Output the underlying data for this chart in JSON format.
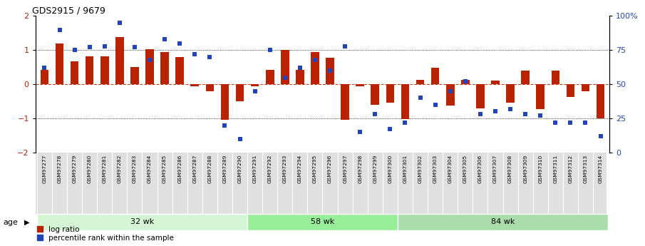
{
  "title": "GDS2915 / 9679",
  "samples": [
    "GSM97277",
    "GSM97278",
    "GSM97279",
    "GSM97280",
    "GSM97281",
    "GSM97282",
    "GSM97283",
    "GSM97284",
    "GSM97285",
    "GSM97286",
    "GSM97287",
    "GSM97288",
    "GSM97289",
    "GSM97290",
    "GSM97291",
    "GSM97292",
    "GSM97293",
    "GSM97294",
    "GSM97295",
    "GSM97296",
    "GSM97297",
    "GSM97298",
    "GSM97299",
    "GSM97300",
    "GSM97301",
    "GSM97302",
    "GSM97303",
    "GSM97304",
    "GSM97305",
    "GSM97306",
    "GSM97307",
    "GSM97308",
    "GSM97309",
    "GSM97310",
    "GSM97311",
    "GSM97312",
    "GSM97313",
    "GSM97314"
  ],
  "log_ratio": [
    0.42,
    1.2,
    0.68,
    0.82,
    0.82,
    1.38,
    0.5,
    1.02,
    0.95,
    0.8,
    -0.05,
    -0.2,
    -1.05,
    -0.5,
    -0.05,
    0.42,
    1.0,
    0.42,
    0.95,
    0.78,
    -1.05,
    -0.05,
    -0.6,
    -0.55,
    -1.02,
    0.12,
    0.48,
    -0.62,
    0.12,
    -0.7,
    0.1,
    -0.55,
    0.4,
    -0.72,
    0.4,
    -0.38,
    -0.2,
    -1.0
  ],
  "percentile": [
    62,
    90,
    75,
    77,
    78,
    95,
    77,
    68,
    83,
    80,
    72,
    70,
    20,
    10,
    45,
    75,
    55,
    62,
    68,
    60,
    78,
    15,
    28,
    17,
    22,
    40,
    35,
    45,
    52,
    28,
    30,
    32,
    28,
    27,
    22,
    22,
    22,
    12
  ],
  "groups": [
    {
      "label": "32 wk",
      "start": 0,
      "end": 14,
      "color": "#d5f5d5"
    },
    {
      "label": "58 wk",
      "start": 14,
      "end": 24,
      "color": "#99ee99"
    },
    {
      "label": "84 wk",
      "start": 24,
      "end": 38,
      "color": "#aaddaa"
    }
  ],
  "ylim": [
    -2,
    2
  ],
  "yticks_left": [
    -2,
    -1,
    0,
    1,
    2
  ],
  "yticks_right": [
    0,
    25,
    50,
    75,
    100
  ],
  "bar_color": "#bb2200",
  "dot_color": "#2244bb",
  "hline_color": "#cc3300",
  "dotted_lines": [
    1.0,
    -1.0
  ],
  "right_axis_label_color": "#2244bb",
  "background_color": "#ffffff",
  "label_fontsize": 5.5,
  "group_fontsize": 8
}
